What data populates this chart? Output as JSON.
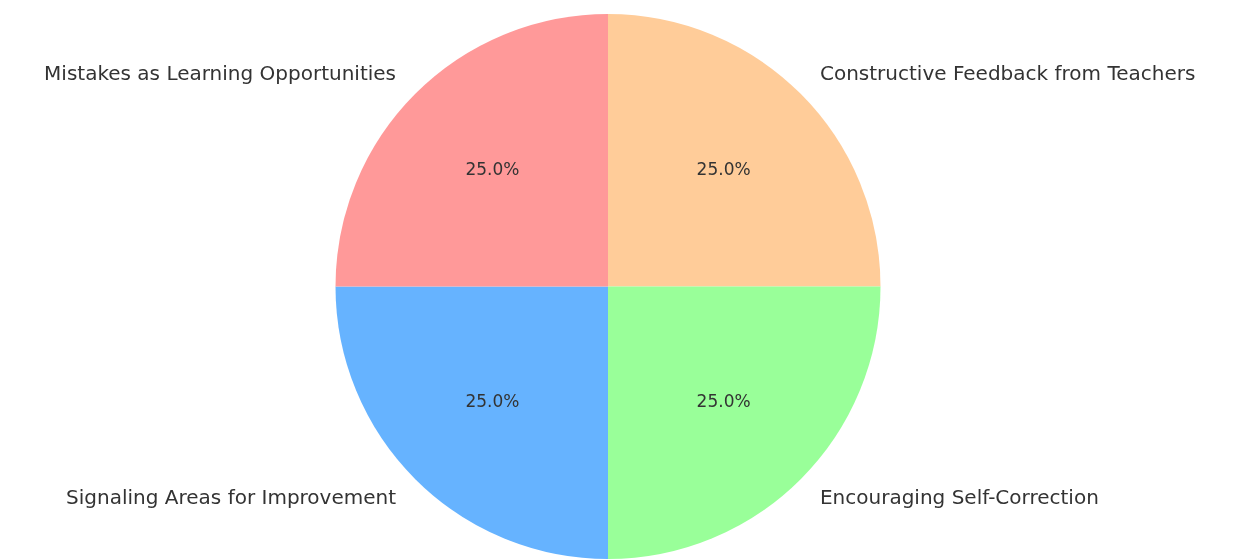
{
  "chart_data": {
    "type": "pie",
    "categories": [
      "Constructive Feedback from Teachers",
      "Encouraging Self-Correction",
      "Signaling Areas for Improvement",
      "Mistakes as Learning Opportunities"
    ],
    "values": [
      25,
      25,
      25,
      25
    ],
    "colors": [
      "#ffcc99",
      "#99ff99",
      "#66b3ff",
      "#ff9999"
    ],
    "value_labels": [
      "25.0%",
      "25.0%",
      "25.0%",
      "25.0%"
    ],
    "legend": false
  }
}
